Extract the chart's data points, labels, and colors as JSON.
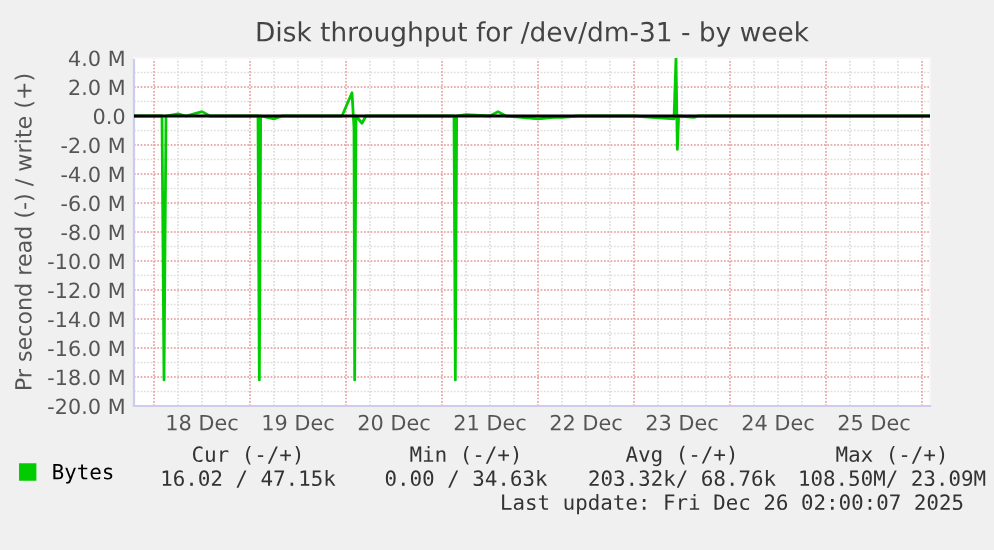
{
  "chart_data": {
    "type": "line",
    "title": "Disk throughput for /dev/dm-31 - by week",
    "ylabel": "Pr second read (-) / write (+)",
    "xlim": [
      "2025-12-17T19:00",
      "2025-12-26T02:00"
    ],
    "xticks": [
      {
        "value": "2025-12-18T12:00",
        "label": "18 Dec"
      },
      {
        "value": "2025-12-19T12:00",
        "label": "19 Dec"
      },
      {
        "value": "2025-12-20T12:00",
        "label": "20 Dec"
      },
      {
        "value": "2025-12-21T12:00",
        "label": "21 Dec"
      },
      {
        "value": "2025-12-22T12:00",
        "label": "22 Dec"
      },
      {
        "value": "2025-12-23T12:00",
        "label": "23 Dec"
      },
      {
        "value": "2025-12-24T12:00",
        "label": "24 Dec"
      },
      {
        "value": "2025-12-25T12:00",
        "label": "25 Dec"
      }
    ],
    "ylim": [
      -20,
      4
    ],
    "yticks": [
      {
        "value": 4,
        "label": "4.0 M"
      },
      {
        "value": 2,
        "label": "2.0 M"
      },
      {
        "value": 0,
        "label": "0.0"
      },
      {
        "value": -2,
        "label": "-2.0 M"
      },
      {
        "value": -4,
        "label": "-4.0 M"
      },
      {
        "value": -6,
        "label": "-6.0 M"
      },
      {
        "value": -8,
        "label": "-8.0 M"
      },
      {
        "value": -10,
        "label": "-10.0 M"
      },
      {
        "value": -12,
        "label": "-12.0 M"
      },
      {
        "value": -14,
        "label": "-14.0 M"
      },
      {
        "value": -16,
        "label": "-16.0 M"
      },
      {
        "value": -18,
        "label": "-18.0 M"
      },
      {
        "value": -20,
        "label": "-20.0 M"
      }
    ],
    "grid": true,
    "legend": "bottom",
    "ref_lines": [
      {
        "axis": "y",
        "value": 0,
        "color": "#000000"
      }
    ],
    "series": [
      {
        "name": "Bytes",
        "color": "#00cc00",
        "x": [
          "2025-12-17T19:00",
          "2025-12-18T02:00",
          "2025-12-18T02:30",
          "2025-12-18T03:00",
          "2025-12-18T06:00",
          "2025-12-18T08:00",
          "2025-12-18T12:00",
          "2025-12-18T14:00",
          "2025-12-19T02:00",
          "2025-12-19T02:20",
          "2025-12-19T02:40",
          "2025-12-19T06:00",
          "2025-12-19T08:00",
          "2025-12-19T23:00",
          "2025-12-20T01:30",
          "2025-12-20T02:00",
          "2025-12-20T02:10",
          "2025-12-20T02:30",
          "2025-12-20T04:00",
          "2025-12-20T05:00",
          "2025-12-21T03:00",
          "2025-12-21T03:20",
          "2025-12-21T03:40",
          "2025-12-21T06:00",
          "2025-12-21T12:00",
          "2025-12-21T14:00",
          "2025-12-21T16:00",
          "2025-12-22T00:00",
          "2025-12-22T04:00",
          "2025-12-22T06:00",
          "2025-12-22T10:00",
          "2025-12-23T00:00",
          "2025-12-23T10:00",
          "2025-12-23T10:30",
          "2025-12-23T10:50",
          "2025-12-23T11:10",
          "2025-12-23T15:00",
          "2025-12-23T16:00",
          "2025-12-24T12:00",
          "2025-12-26T02:00"
        ],
        "values": [
          0,
          0,
          -18.2,
          0,
          0.15,
          0,
          0.3,
          0,
          0,
          -18.2,
          0,
          -0.2,
          0,
          0,
          1.6,
          -0.8,
          -18.2,
          0,
          -0.5,
          0,
          0,
          -18.2,
          0,
          0.1,
          0,
          0.3,
          0,
          -0.2,
          -0.1,
          -0.1,
          0,
          0,
          -0.2,
          4.0,
          -2.3,
          0,
          -0.1,
          0,
          0,
          0
        ]
      }
    ],
    "annotations": [
      "Cur (-/+)",
      "Min (-/+)",
      "Avg (-/+)",
      "Max (-/+)",
      "16.02 / 47.15k",
      "0.00 / 34.63k",
      "203.32k/ 68.76k",
      "108.50M/ 23.09M",
      "Last update: Fri Dec 26 02:00:07 2025"
    ]
  }
}
